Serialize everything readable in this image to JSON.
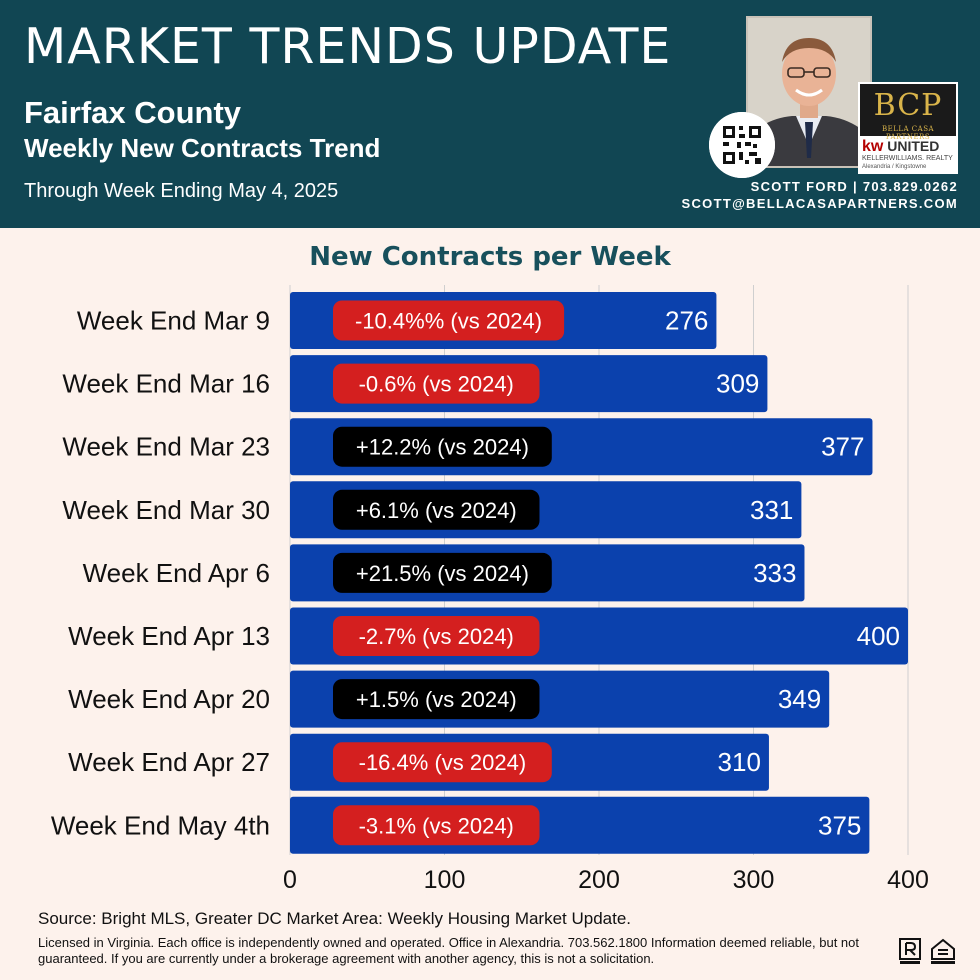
{
  "header": {
    "title": "MARKET TRENDS UPDATE",
    "county": "Fairfax County",
    "subtitle": "Weekly New Contracts Trend",
    "through": "Through Week Ending May 4, 2025",
    "contact_line1": "SCOTT FORD | 703.829.0262",
    "contact_line2": "SCOTT@BELLACASAPARTNERS.COM"
  },
  "logo": {
    "letters": "BCP",
    "brand": "BELLA CASA PARTNERS",
    "kw": "kw",
    "kw_text": "UNITED",
    "kw_sub": "KELLERWILLIAMS. REALTY",
    "kw_office": "Alexandria / Kingstowne"
  },
  "colors": {
    "header_bg": "#114653",
    "bar": "#0b41ad",
    "badge_negative": "#d41f1f",
    "badge_positive": "#000000",
    "title": "#18505c",
    "page_bg": "#fdf2ec"
  },
  "chart_data": {
    "type": "bar",
    "orientation": "horizontal",
    "title": "New Contracts per Week",
    "categories": [
      "Week End Mar 9",
      "Week End Mar 16",
      "Week End Mar 23",
      "Week End Mar 30",
      "Week End Apr 6",
      "Week End Apr 13",
      "Week End Apr 20",
      "Week End Apr 27",
      "Week End May 4th"
    ],
    "values": [
      276,
      309,
      377,
      331,
      333,
      400,
      349,
      310,
      375
    ],
    "annotations": [
      "-10.4%% (vs 2024)",
      "-0.6% (vs 2024)",
      "+12.2% (vs 2024)",
      "+6.1% (vs 2024)",
      "+21.5% (vs 2024)",
      "-2.7% (vs 2024)",
      "+1.5% (vs 2024)",
      "-16.4% (vs 2024)",
      "-3.1% (vs 2024)"
    ],
    "annotation_sign": [
      "negative",
      "negative",
      "positive",
      "positive",
      "positive",
      "negative",
      "positive",
      "negative",
      "negative"
    ],
    "xlim": [
      0,
      400
    ],
    "xticks": [
      0,
      100,
      200,
      300,
      400
    ],
    "grid": true
  },
  "footer": {
    "source": "Source: Bright MLS, Greater DC Market Area: Weekly Housing Market Update.",
    "legal": "Licensed in Virginia. Each office is independently owned and operated. Office in Alexandria. 703.562.1800  Information deemed reliable, but not guaranteed. If you are currently under a brokerage agreement with another agency, this is not a solicitation."
  },
  "icons": [
    "realtor-icon",
    "equal-housing-icon"
  ]
}
